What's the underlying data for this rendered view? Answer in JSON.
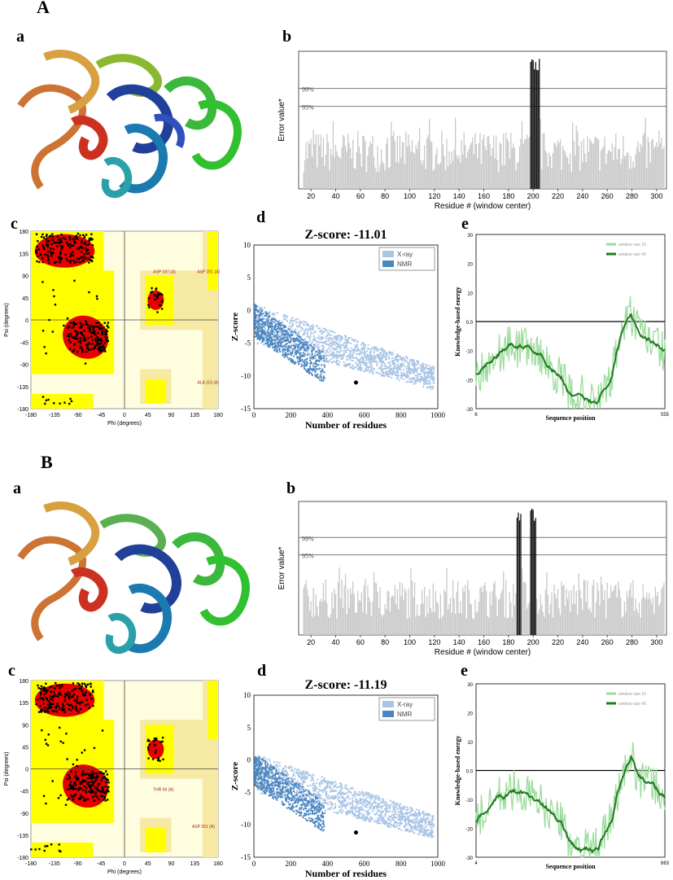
{
  "panels": {
    "A": "A",
    "B": "B"
  },
  "sublabels": {
    "a": "a",
    "b": "b",
    "c": "c",
    "d": "d",
    "e": "e"
  },
  "colors": {
    "ramachandran_core": "#e60000",
    "ramachandran_allowed": "#ffff00",
    "ramachandran_generous": "#f5e9a3",
    "ramachandran_outside": "#fffde0",
    "xray": "#a9c5e6",
    "nmr": "#4a86c0",
    "window10": "#9ddc9d",
    "window40": "#1f7a1f",
    "errat_bar": "#c8c8c8",
    "errat_flag": "#111111"
  },
  "errat": {
    "ylabel": "Error value*",
    "xlabel": "Residue # (window center)",
    "line99": "99%",
    "line95": "95%",
    "ticks": [
      "20",
      "40",
      "60",
      "80",
      "100",
      "120",
      "140",
      "160",
      "180",
      "200",
      "220",
      "240",
      "260",
      "280",
      "300"
    ]
  },
  "rama": {
    "xlabel": "Phi (degrees)",
    "ylabel": "Psi (degrees)",
    "xticks": [
      "-180",
      "-135",
      "-90",
      "-45",
      "0",
      "45",
      "90",
      "135",
      "180"
    ],
    "yticks": [
      "180",
      "135",
      "90",
      "45",
      "0",
      "-45",
      "-90",
      "-135",
      "-180"
    ],
    "A_labels": [
      "ASP 187 (A)",
      "ASP 201 (A)",
      "ALA 115 (A)"
    ],
    "B_labels": [
      "THR 66 (A)",
      "ASP 201 (A)"
    ]
  },
  "prosa": {
    "A_title": "Z-score: -11.01",
    "B_title": "Z-score: -11.19",
    "xlabel": "Number of residues",
    "ylabel": "Z-score",
    "legend": [
      "X-ray",
      "NMR"
    ],
    "xticks": [
      "0",
      "200",
      "400",
      "600",
      "800",
      "1000"
    ],
    "yticks": [
      "10",
      "5",
      "0",
      "-5",
      "-10",
      "-15"
    ]
  },
  "energy": {
    "xlabel": "Sequence position",
    "ylabel": "Knowledge-based energy",
    "legend": [
      "window size 10",
      "window size 40"
    ],
    "yticks": [
      "30",
      "20",
      "10",
      "0.0",
      "-10",
      "-20",
      "-30"
    ],
    "A_x": [
      "6",
      "555"
    ],
    "B_x": [
      "4",
      "663"
    ]
  },
  "chart_data": [
    {
      "type": "bar",
      "panel": "A-b",
      "xlabel": "Residue # (window center)",
      "ylabel": "Error value*",
      "x": [
        20,
        40,
        60,
        80,
        100,
        120,
        140,
        160,
        180,
        200,
        220,
        240,
        260,
        280,
        300
      ],
      "flagged_residues": [
        198,
        199,
        200,
        201,
        202,
        203,
        204,
        205
      ],
      "reference_lines": [
        "95%",
        "99%"
      ]
    },
    {
      "type": "bar",
      "panel": "B-b",
      "xlabel": "Residue # (window center)",
      "ylabel": "Error value*",
      "x": [
        20,
        40,
        60,
        80,
        100,
        120,
        140,
        160,
        180,
        200,
        220,
        240,
        260,
        280,
        300
      ],
      "flagged_residues": [
        187,
        188,
        189,
        190,
        198,
        199,
        200,
        201,
        202
      ],
      "reference_lines": [
        "95%",
        "99%"
      ]
    },
    {
      "type": "scatter",
      "panel": "A-d",
      "title": "Z-score: -11.01",
      "xlabel": "Number of residues",
      "ylabel": "Z-score",
      "series": [
        {
          "name": "X-ray"
        },
        {
          "name": "NMR"
        }
      ],
      "highlight": {
        "x": 555,
        "y": -11.01
      },
      "xlim": [
        0,
        1000
      ],
      "ylim": [
        -15,
        10
      ]
    },
    {
      "type": "scatter",
      "panel": "B-d",
      "title": "Z-score: -11.19",
      "xlabel": "Number of residues",
      "ylabel": "Z-score",
      "series": [
        {
          "name": "X-ray"
        },
        {
          "name": "NMR"
        }
      ],
      "highlight": {
        "x": 555,
        "y": -11.19
      },
      "xlim": [
        0,
        1000
      ],
      "ylim": [
        -15,
        10
      ]
    },
    {
      "type": "line",
      "panel": "A-e",
      "xlabel": "Sequence position",
      "ylabel": "Knowledge-based energy",
      "xlim": [
        6,
        555
      ],
      "ylim": [
        -30,
        30
      ],
      "series": [
        {
          "name": "window size 10"
        },
        {
          "name": "window size 40"
        }
      ]
    },
    {
      "type": "line",
      "panel": "B-e",
      "xlabel": "Sequence position",
      "ylabel": "Knowledge-based energy",
      "xlim": [
        4,
        663
      ],
      "ylim": [
        -30,
        30
      ],
      "series": [
        {
          "name": "window size 10"
        },
        {
          "name": "window size 40"
        }
      ]
    }
  ]
}
